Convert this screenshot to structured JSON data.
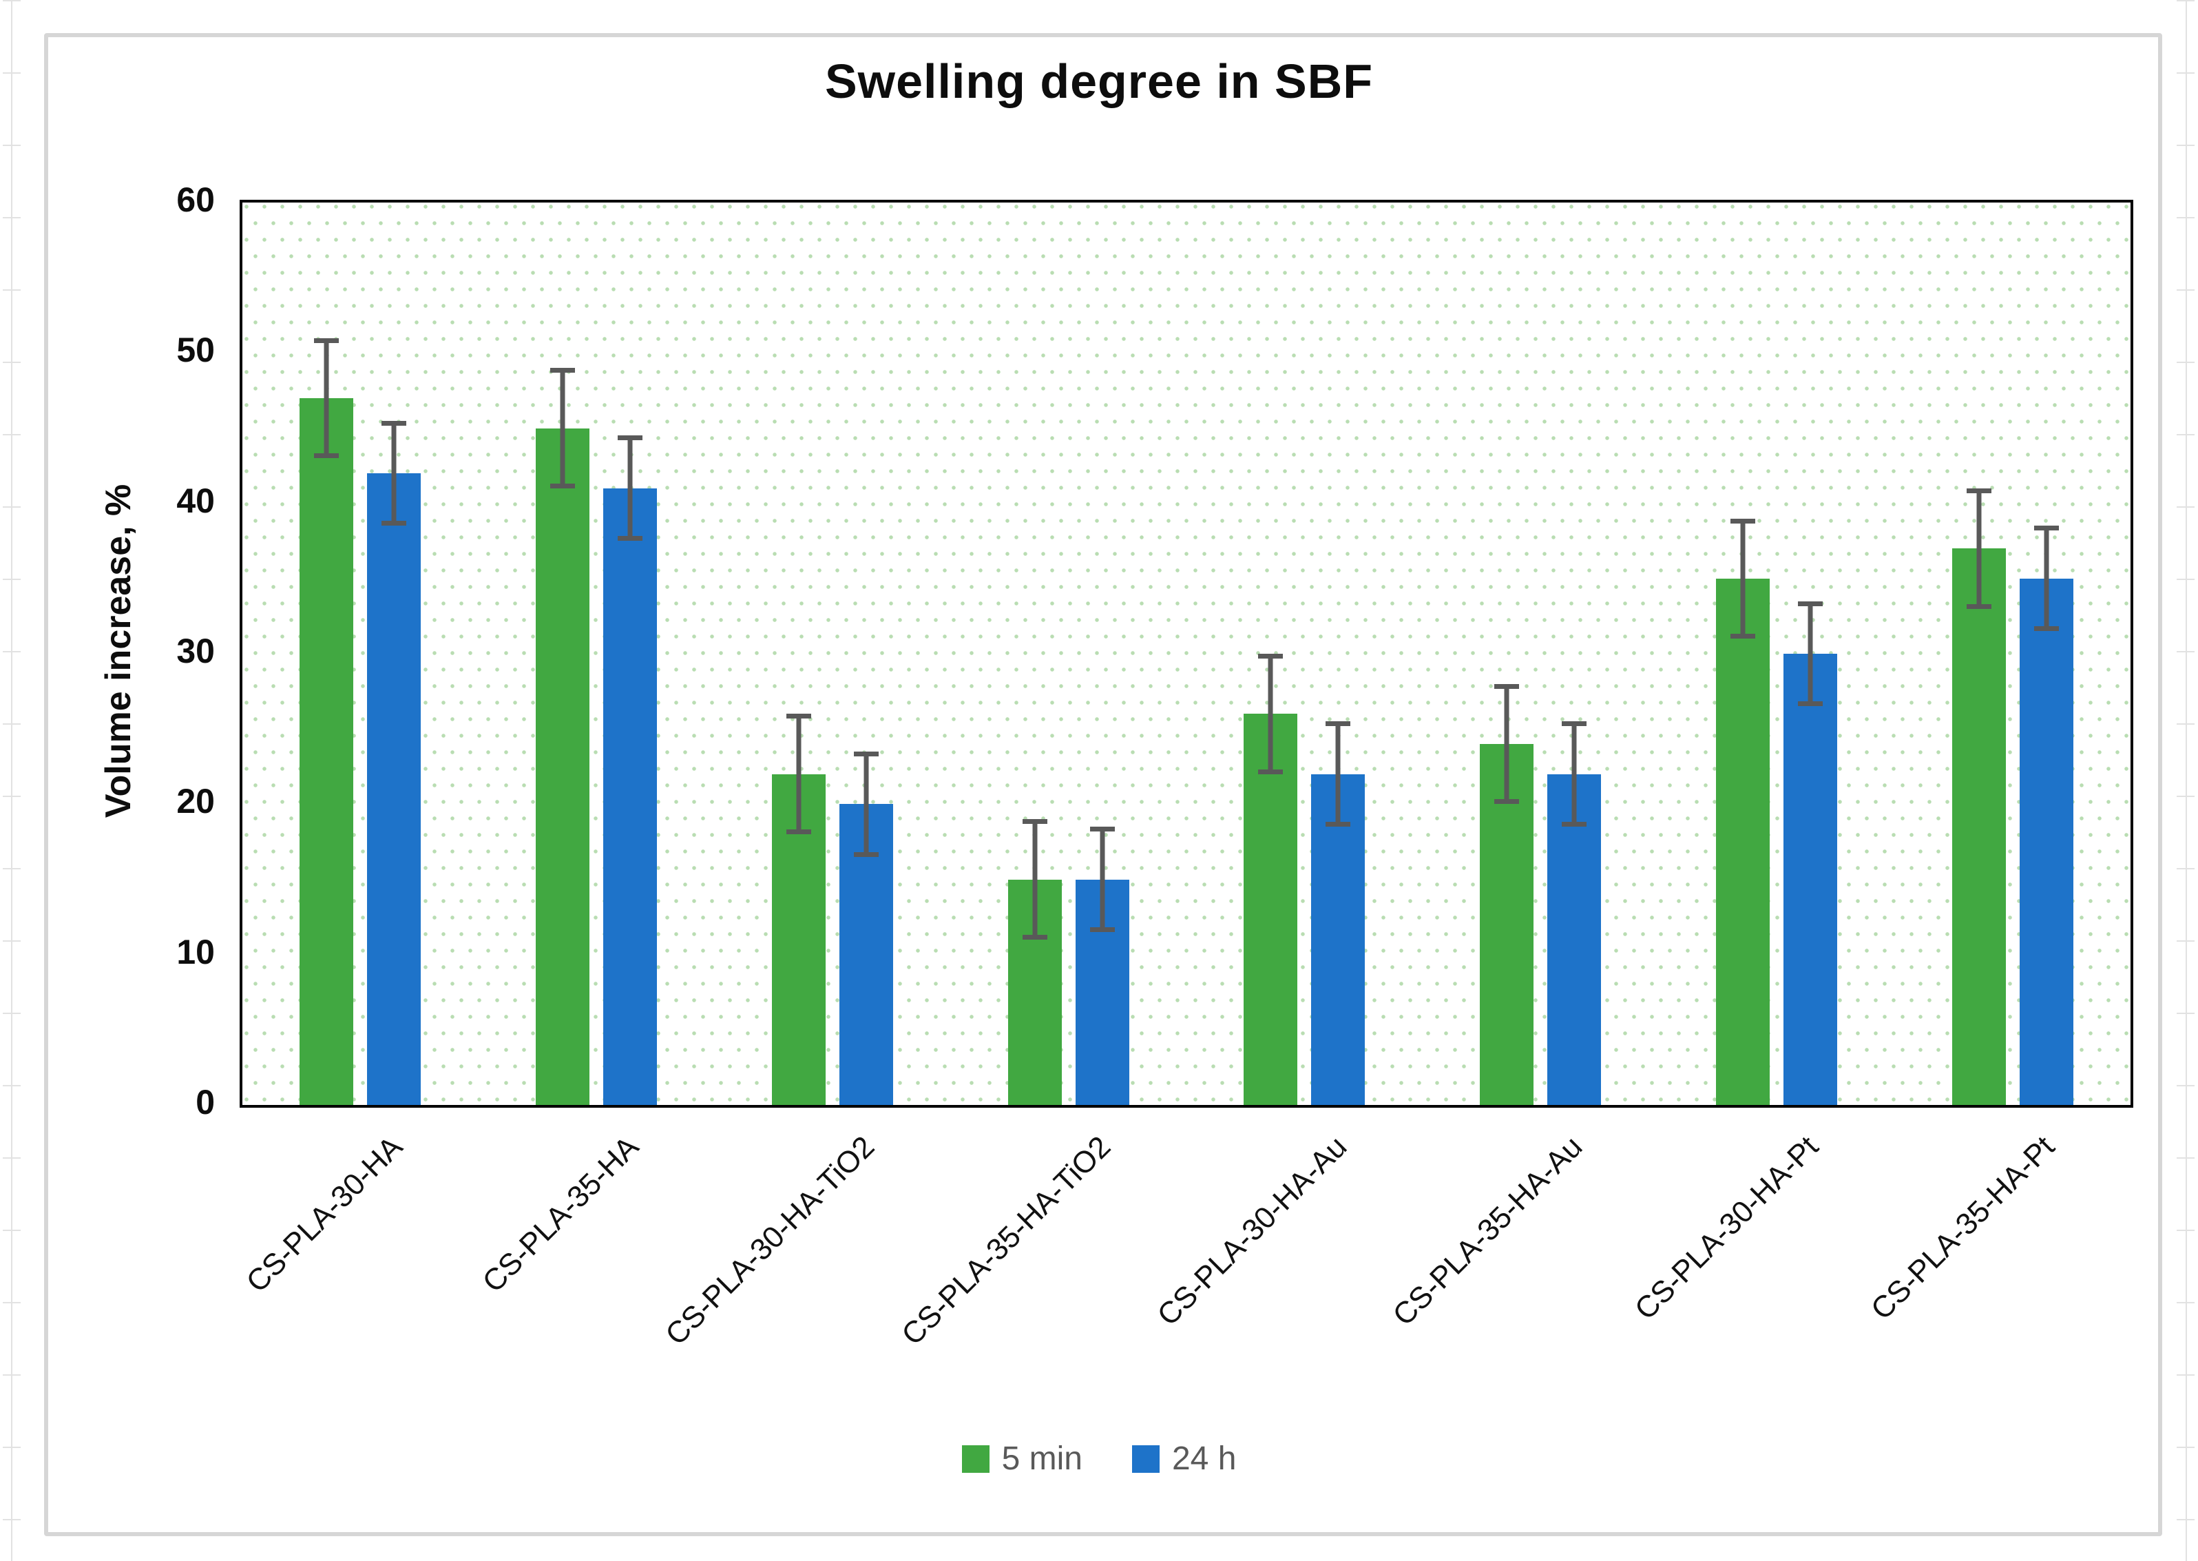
{
  "title": "Swelling degree in SBF",
  "y_axis": {
    "label": "Volume increase, %"
  },
  "legend": {
    "items": [
      "5 min",
      "24 h"
    ]
  },
  "colors": {
    "series_5min": "#41a841",
    "series_24h": "#1e73c9",
    "error_bar": "#595959",
    "plot_dots": "#b9ddb2",
    "frame": "#d6d6d6"
  },
  "chart_data": {
    "type": "bar",
    "title": "Swelling degree in SBF",
    "xlabel": "",
    "ylabel": "Volume increase, %",
    "ylim": [
      0,
      60
    ],
    "yticks": [
      0,
      10,
      20,
      30,
      40,
      50,
      60
    ],
    "grid": false,
    "legend_position": "bottom",
    "background": "white with light-green dot pattern",
    "categories": [
      "CS-PLA-30-HA",
      "CS-PLA-35-HA",
      "CS-PLA-30-HA-TiO2",
      "CS-PLA-35-HA-TiO2",
      "CS-PLA-30-HA-Au",
      "CS-PLA-35-HA-Au",
      "CS-PLA-30-HA-Pt",
      "CS-PLA-35-HA-Pt"
    ],
    "series": [
      {
        "name": "5 min",
        "color": "#41a841",
        "values": [
          47,
          45,
          22,
          15,
          26,
          24,
          35,
          37
        ],
        "errors": [
          4,
          4,
          4,
          4,
          4,
          4,
          4,
          4
        ]
      },
      {
        "name": "24 h",
        "color": "#1e73c9",
        "values": [
          42,
          41,
          20,
          15,
          22,
          22,
          30,
          35
        ],
        "errors": [
          3.5,
          3.5,
          3.5,
          3.5,
          3.5,
          3.5,
          3.5,
          3.5
        ]
      }
    ]
  }
}
